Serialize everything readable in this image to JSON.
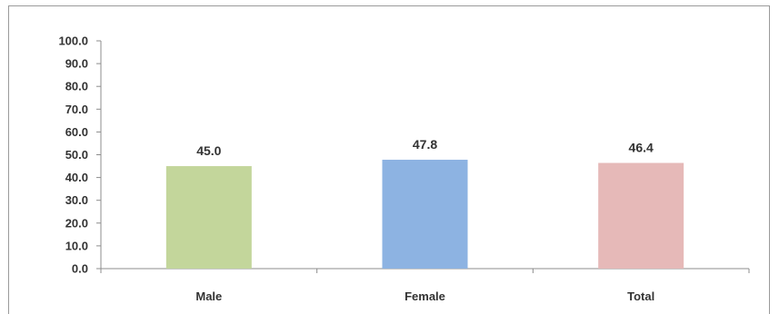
{
  "chart_data": {
    "type": "bar",
    "categories": [
      "Male",
      "Female",
      "Total"
    ],
    "values": [
      45.0,
      47.8,
      46.4
    ],
    "data_labels": [
      "45.0",
      "47.8",
      "46.4"
    ],
    "bar_colors": [
      "#c3d69b",
      "#8db3e2",
      "#e6b9b8"
    ],
    "title": "",
    "xlabel": "",
    "ylabel": "",
    "ylim": [
      0,
      100
    ],
    "yticks": [
      "0.0",
      "10.0",
      "20.0",
      "30.0",
      "40.0",
      "50.0",
      "60.0",
      "70.0",
      "80.0",
      "90.0",
      "100.0"
    ],
    "grid": false,
    "legend": "none"
  }
}
